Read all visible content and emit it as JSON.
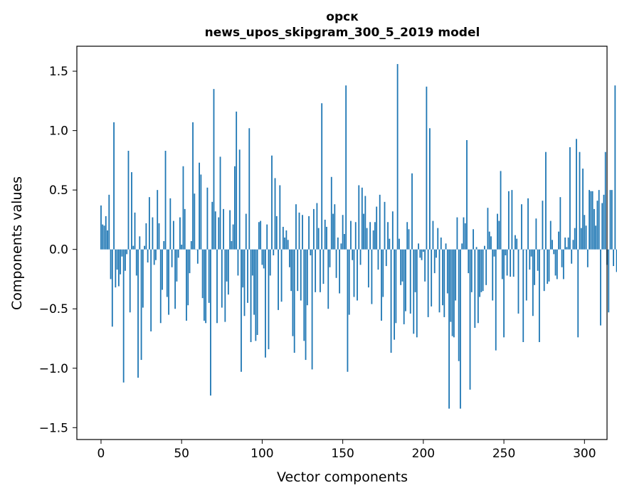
{
  "chart_data": {
    "type": "bar",
    "title": "орск",
    "subtitle": "news_upos_skipgram_300_5_2019 model",
    "xlabel": "Vector components",
    "ylabel": "Components values",
    "xlim": [
      -15,
      314
    ],
    "ylim": [
      -1.6,
      1.71
    ],
    "xticks": [
      0,
      50,
      100,
      150,
      200,
      250,
      300
    ],
    "xtick_labels": [
      "0",
      "50",
      "100",
      "150",
      "200",
      "250",
      "300"
    ],
    "yticks": [
      -1.5,
      -1.0,
      -0.5,
      0.0,
      0.5,
      1.0,
      1.5
    ],
    "ytick_labels": [
      "−1.5",
      "−1.0",
      "−0.5",
      "0.0",
      "0.5",
      "1.0",
      "1.5"
    ],
    "bar_color": "#1f77b4",
    "values": [
      0.37,
      0.21,
      0.2,
      0.28,
      0.16,
      0.46,
      -0.25,
      -0.65,
      1.07,
      -0.32,
      -0.17,
      -0.31,
      -0.21,
      -0.06,
      -1.12,
      -0.18,
      -0.04,
      0.83,
      -0.53,
      0.65,
      0.03,
      0.31,
      -0.22,
      -1.08,
      0.11,
      -0.93,
      -0.49,
      0.03,
      0.22,
      -0.11,
      0.44,
      -0.69,
      0.27,
      -0.13,
      -0.09,
      0.5,
      0.22,
      -0.62,
      -0.34,
      0.07,
      0.83,
      -0.4,
      -0.55,
      0.43,
      -0.15,
      0.24,
      -0.5,
      -0.27,
      -0.07,
      0.27,
      0.04,
      0.7,
      0.34,
      -0.6,
      -0.47,
      -0.2,
      0.07,
      1.07,
      0.47,
      0.0,
      -0.12,
      0.73,
      0.63,
      -0.41,
      -0.6,
      -0.62,
      0.52,
      -0.45,
      -1.23,
      0.4,
      1.35,
      0.32,
      -0.62,
      0.27,
      0.78,
      -0.49,
      0.34,
      -0.61,
      -0.27,
      -0.38,
      0.33,
      0.07,
      0.21,
      0.7,
      1.16,
      -0.22,
      0.84,
      -1.03,
      -0.32,
      -0.56,
      0.3,
      -0.45,
      1.02,
      -0.78,
      -0.22,
      -0.55,
      -0.77,
      -0.72,
      0.23,
      0.24,
      -0.13,
      -0.16,
      -0.91,
      0.21,
      -0.84,
      -0.22,
      0.79,
      -0.05,
      0.6,
      0.28,
      -0.51,
      0.54,
      -0.44,
      0.19,
      0.1,
      0.16,
      0.08,
      -0.15,
      -0.35,
      -0.73,
      -0.87,
      0.38,
      -0.35,
      0.31,
      -0.43,
      0.29,
      -0.77,
      -0.93,
      -0.47,
      0.28,
      -0.05,
      -1.01,
      0.34,
      -0.36,
      0.39,
      0.18,
      -0.36,
      1.23,
      -0.29,
      0.25,
      0.19,
      -0.5,
      -0.15,
      0.61,
      0.3,
      0.38,
      -0.24,
      0.1,
      -0.37,
      0.05,
      0.29,
      0.13,
      1.38,
      -1.03,
      -0.55,
      0.24,
      -0.09,
      -0.4,
      0.23,
      -0.43,
      0.54,
      -0.13,
      0.52,
      0.3,
      0.45,
      0.18,
      -0.32,
      0.23,
      -0.46,
      0.16,
      0.23,
      0.36,
      -0.17,
      0.46,
      -0.6,
      -0.4,
      0.4,
      -0.14,
      0.23,
      0.09,
      -0.87,
      0.32,
      -0.76,
      -0.62,
      1.56,
      0.09,
      -0.3,
      -0.27,
      -0.63,
      -0.52,
      0.23,
      0.17,
      -0.54,
      0.64,
      -0.71,
      -0.36,
      -0.74,
      0.05,
      -0.07,
      -0.09,
      -0.02,
      -0.27,
      1.37,
      -0.57,
      1.02,
      -0.48,
      0.24,
      -0.2,
      -0.07,
      0.18,
      -0.53,
      0.1,
      -0.47,
      -0.57,
      0.05,
      -0.37,
      -1.34,
      -0.61,
      -0.73,
      -0.74,
      -0.43,
      0.27,
      -0.94,
      -1.34,
      0.05,
      0.27,
      0.22,
      0.92,
      -0.2,
      -1.18,
      -0.36,
      0.17,
      -0.66,
      0.02,
      -0.62,
      -0.4,
      -0.36,
      -0.35,
      0.03,
      -0.3,
      0.35,
      0.15,
      0.11,
      -0.43,
      -0.06,
      -0.85,
      0.3,
      0.24,
      0.66,
      -0.25,
      -0.74,
      -0.05,
      -0.22,
      0.49,
      -0.23,
      0.5,
      -0.23,
      0.12,
      0.09,
      -0.54,
      0.0,
      0.38,
      -0.78,
      0.0,
      -0.43,
      0.43,
      -0.17,
      -0.06,
      -0.56,
      -0.3,
      0.26,
      -0.18,
      -0.78,
      0.0,
      0.41,
      -0.35,
      0.82,
      -0.29,
      -0.27,
      0.24,
      0.08,
      -0.04,
      -0.22,
      -0.25,
      0.15,
      0.44,
      -0.15,
      -0.25,
      0.1,
      0.02,
      0.1,
      0.86,
      -0.12,
      0.08,
      0.18,
      0.93,
      -0.74,
      0.82,
      0.18,
      0.68,
      0.29,
      0.2,
      -0.15,
      0.5,
      0.49,
      0.49,
      0.34,
      0.2,
      0.41,
      0.5,
      -0.64,
      0.39,
      0.46,
      0.82,
      -0.13,
      -0.53,
      0.5,
      0.5,
      -0.14,
      1.38,
      -0.19,
      -0.08,
      -0.06,
      0.28
    ]
  }
}
